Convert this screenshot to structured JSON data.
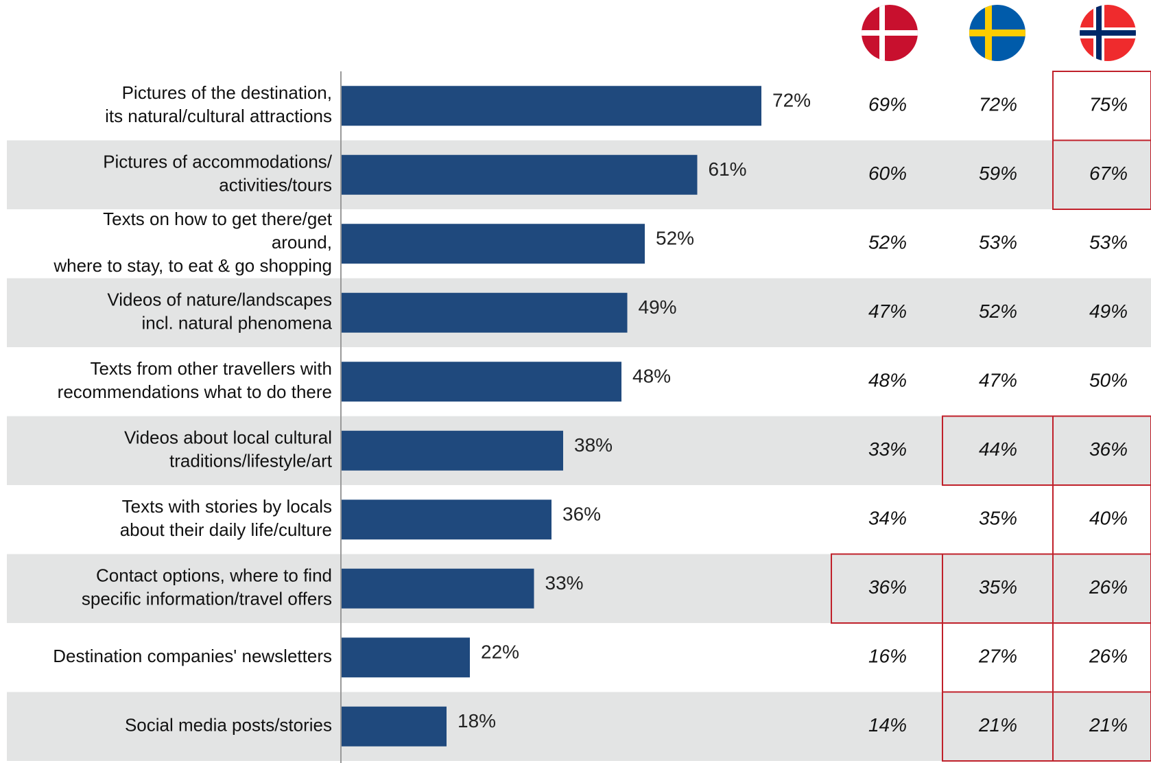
{
  "chart_data": {
    "type": "bar",
    "orientation": "horizontal",
    "title": "",
    "xlabel": "",
    "ylabel": "",
    "xlim": [
      0,
      100
    ],
    "grid": false,
    "bar_color": "#1F497D",
    "stripe_color": "#E3E4E4",
    "highlight_color": "#C0202A",
    "categories": [
      [
        "Pictures of the destination,",
        "its natural/cultural attractions"
      ],
      [
        "Pictures of accommodations/",
        "activities/tours"
      ],
      [
        "Texts on how to get there/get",
        "around,",
        "where to stay, to eat & go shopping"
      ],
      [
        "Videos of nature/landscapes",
        "incl. natural phenomena"
      ],
      [
        "Texts from other travellers with",
        "recommendations what to do there"
      ],
      [
        "Videos about local cultural",
        "traditions/lifestyle/art"
      ],
      [
        "Texts with stories by locals",
        "about their daily life/culture"
      ],
      [
        "Contact options, where to find",
        "specific information/travel offers"
      ],
      [
        "Destination companies' newsletters"
      ],
      [
        "Social media posts/stories"
      ]
    ],
    "values": [
      72,
      61,
      52,
      49,
      48,
      38,
      36,
      33,
      22,
      18
    ],
    "value_labels": [
      "72%",
      "61%",
      "52%",
      "49%",
      "48%",
      "38%",
      "36%",
      "33%",
      "22%",
      "18%"
    ],
    "country_columns": [
      {
        "flag": "denmark-flag",
        "values": [
          69,
          60,
          52,
          47,
          48,
          33,
          34,
          36,
          16,
          14
        ],
        "labels": [
          "69%",
          "60%",
          "52%",
          "47%",
          "48%",
          "33%",
          "34%",
          "36%",
          "16%",
          "14%"
        ],
        "highlighted": [
          false,
          false,
          false,
          false,
          false,
          false,
          false,
          true,
          false,
          false
        ]
      },
      {
        "flag": "sweden-flag",
        "values": [
          72,
          59,
          53,
          52,
          47,
          44,
          35,
          35,
          27,
          21
        ],
        "labels": [
          "72%",
          "59%",
          "53%",
          "52%",
          "47%",
          "44%",
          "35%",
          "35%",
          "27%",
          "21%"
        ],
        "highlighted": [
          false,
          false,
          false,
          false,
          false,
          true,
          false,
          true,
          true,
          true
        ]
      },
      {
        "flag": "norway-flag",
        "values": [
          75,
          67,
          53,
          49,
          50,
          36,
          40,
          26,
          26,
          21
        ],
        "labels": [
          "75%",
          "67%",
          "53%",
          "49%",
          "50%",
          "36%",
          "40%",
          "26%",
          "26%",
          "21%"
        ],
        "highlighted": [
          true,
          true,
          false,
          false,
          false,
          true,
          true,
          true,
          true,
          true
        ]
      }
    ]
  }
}
